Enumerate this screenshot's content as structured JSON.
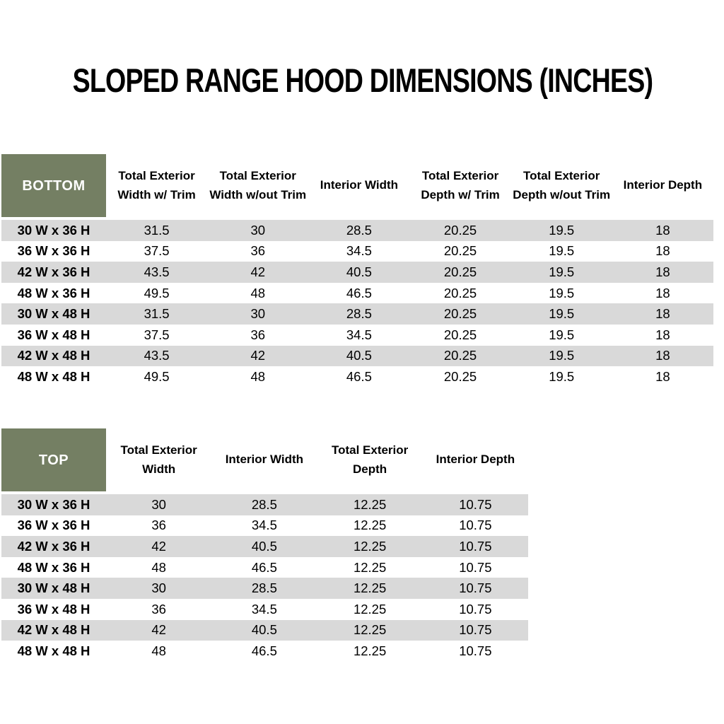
{
  "title": "SLOPED RANGE HOOD DIMENSIONS (INCHES)",
  "colors": {
    "header_green": "#747F63",
    "stripe_gray": "#D9D9D9",
    "header_label_text": "#FFFFFF",
    "body_text": "#000000"
  },
  "tables": [
    {
      "name": "bottom-dimensions",
      "corner_label": "BOTTOM",
      "columns": [
        "Total Exterior Width w/ Trim",
        "Total Exterior Width w/out Trim",
        "Interior Width",
        "Total Exterior Depth w/ Trim",
        "Total Exterior Depth w/out Trim",
        "Interior Depth"
      ],
      "rows": [
        {
          "label": "30 W x 36 H",
          "values": [
            "31.5",
            "30",
            "28.5",
            "20.25",
            "19.5",
            "18"
          ]
        },
        {
          "label": "36 W x 36 H",
          "values": [
            "37.5",
            "36",
            "34.5",
            "20.25",
            "19.5",
            "18"
          ]
        },
        {
          "label": "42 W x 36 H",
          "values": [
            "43.5",
            "42",
            "40.5",
            "20.25",
            "19.5",
            "18"
          ]
        },
        {
          "label": "48 W x 36 H",
          "values": [
            "49.5",
            "48",
            "46.5",
            "20.25",
            "19.5",
            "18"
          ]
        },
        {
          "label": "30 W x 48 H",
          "values": [
            "31.5",
            "30",
            "28.5",
            "20.25",
            "19.5",
            "18"
          ]
        },
        {
          "label": "36 W x 48 H",
          "values": [
            "37.5",
            "36",
            "34.5",
            "20.25",
            "19.5",
            "18"
          ]
        },
        {
          "label": "42 W x 48 H",
          "values": [
            "43.5",
            "42",
            "40.5",
            "20.25",
            "19.5",
            "18"
          ]
        },
        {
          "label": "48 W x 48 H",
          "values": [
            "49.5",
            "48",
            "46.5",
            "20.25",
            "19.5",
            "18"
          ]
        }
      ]
    },
    {
      "name": "top-dimensions",
      "corner_label": "TOP",
      "columns": [
        "Total Exterior Width",
        "Interior Width",
        "Total Exterior Depth",
        "Interior Depth"
      ],
      "rows": [
        {
          "label": "30 W x 36 H",
          "values": [
            "30",
            "28.5",
            "12.25",
            "10.75"
          ]
        },
        {
          "label": "36 W x 36 H",
          "values": [
            "36",
            "34.5",
            "12.25",
            "10.75"
          ]
        },
        {
          "label": "42 W x 36 H",
          "values": [
            "42",
            "40.5",
            "12.25",
            "10.75"
          ]
        },
        {
          "label": "48 W x 36 H",
          "values": [
            "48",
            "46.5",
            "12.25",
            "10.75"
          ]
        },
        {
          "label": "30 W x 48 H",
          "values": [
            "30",
            "28.5",
            "12.25",
            "10.75"
          ]
        },
        {
          "label": "36 W x 48 H",
          "values": [
            "36",
            "34.5",
            "12.25",
            "10.75"
          ]
        },
        {
          "label": "42 W x 48 H",
          "values": [
            "42",
            "40.5",
            "12.25",
            "10.75"
          ]
        },
        {
          "label": "48 W x 48 H",
          "values": [
            "48",
            "46.5",
            "12.25",
            "10.75"
          ]
        }
      ]
    }
  ]
}
